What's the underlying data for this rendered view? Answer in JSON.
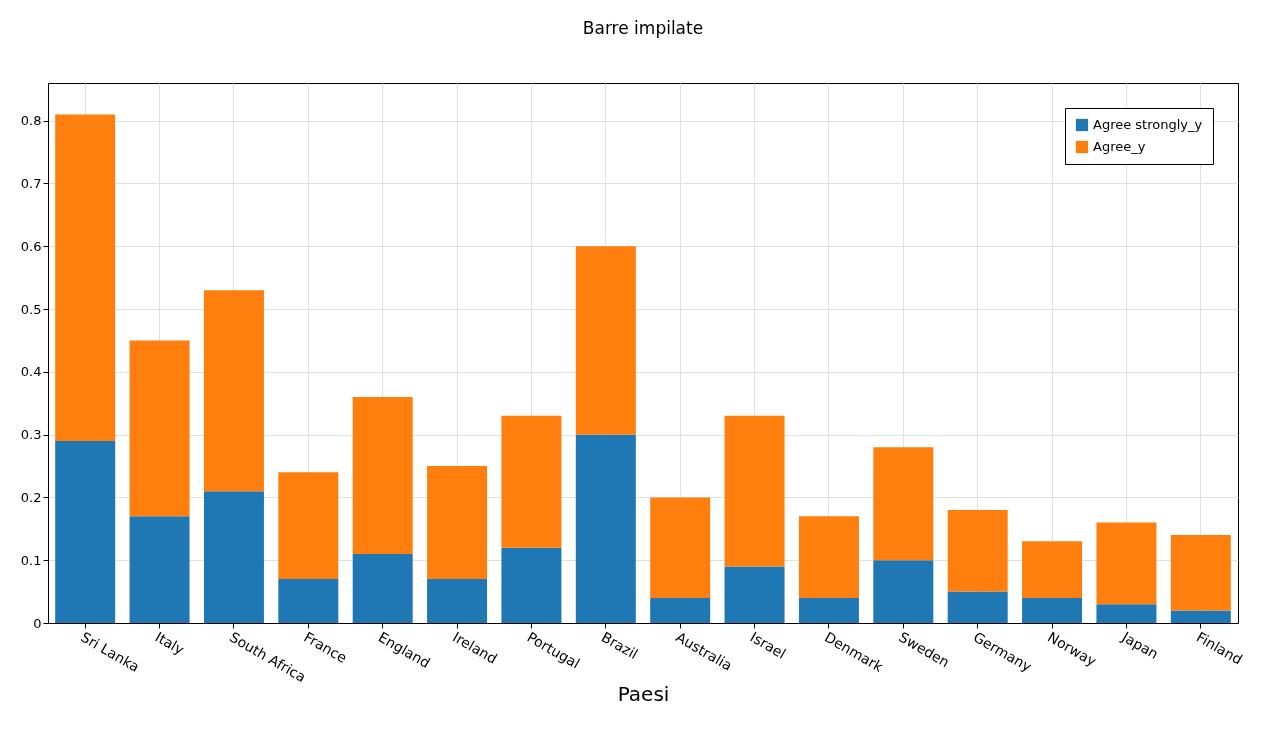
{
  "chart_data": {
    "type": "bar",
    "title": "Barre impilate",
    "xlabel": "Paesi",
    "categories": [
      "Sri Lanka",
      "Italy",
      "South Africa",
      "France",
      "England",
      "Ireland",
      "Portugal",
      "Brazil",
      "Australia",
      "Israel",
      "Denmark",
      "Sweden",
      "Germany",
      "Norway",
      "Japan",
      "Finland"
    ],
    "series": [
      {
        "name": "Agree strongly_y",
        "color": "#1f77b4",
        "values": [
          0.29,
          0.17,
          0.21,
          0.07,
          0.11,
          0.07,
          0.12,
          0.3,
          0.04,
          0.09,
          0.04,
          0.1,
          0.05,
          0.04,
          0.03,
          0.02
        ]
      },
      {
        "name": "Agree_y",
        "color": "#ff7f0e",
        "values": [
          0.52,
          0.28,
          0.32,
          0.17,
          0.25,
          0.18,
          0.21,
          0.3,
          0.16,
          0.24,
          0.13,
          0.18,
          0.13,
          0.09,
          0.13,
          0.12
        ]
      }
    ],
    "stacked": true,
    "ylim": [
      0,
      0.86
    ],
    "yticks": [
      {
        "value": 0,
        "label": "0"
      },
      0.1,
      0.2,
      0.3,
      0.4,
      0.5,
      0.6,
      0.7,
      0.8
    ],
    "grid": true,
    "legend": "top right"
  }
}
